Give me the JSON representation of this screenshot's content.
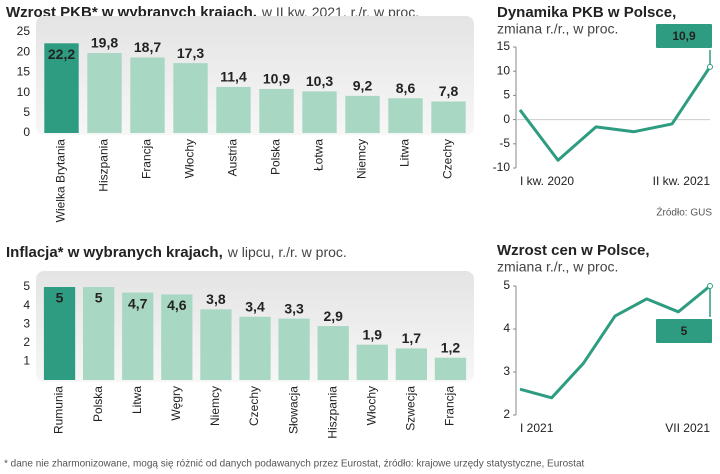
{
  "chart_data": [
    {
      "type": "bar",
      "title": "Wzrost PKB* w wybranych krajach,",
      "subtitle": "w II kw. 2021, r./r. w proc.",
      "categories": [
        "Wielka Brytania",
        "Hiszpania",
        "Francja",
        "Włochy",
        "Austria",
        "Polska",
        "Łotwa",
        "Niemcy",
        "Litwa",
        "Czechy"
      ],
      "values": [
        22.2,
        19.8,
        18.7,
        17.3,
        11.4,
        10.9,
        10.3,
        9.2,
        8.6,
        7.8
      ],
      "value_labels": [
        "22,2",
        "19,8",
        "18,7",
        "17,3",
        "11,4",
        "10,9",
        "10,3",
        "9,2",
        "8,6",
        "7,8"
      ],
      "colors": [
        "#2e9c80",
        "#a8d8c3",
        "#a8d8c3",
        "#a8d8c3",
        "#a8d8c3",
        "#a8d8c3",
        "#a8d8c3",
        "#a8d8c3",
        "#a8d8c3",
        "#a8d8c3"
      ],
      "ylim": [
        0,
        25
      ],
      "yticks": [
        0,
        5,
        10,
        15,
        20,
        25
      ]
    },
    {
      "type": "line",
      "title": "Dynamika PKB w Polsce,",
      "subtitle": "zmiana r./r., w proc.",
      "categories": [
        "I kw. 2020",
        null,
        null,
        null,
        null,
        "II kw. 2021"
      ],
      "values": [
        2,
        -8.4,
        -1.5,
        -2.5,
        -0.9,
        10.9
      ],
      "value_labels": [
        null,
        null,
        null,
        null,
        null,
        "10,9"
      ],
      "color": "#2e9c80",
      "callout": "above",
      "source": "Źródło: GUS",
      "ylim": [
        -10,
        15
      ],
      "yticks": [
        -10,
        -5,
        0,
        5,
        10,
        15
      ]
    },
    {
      "type": "bar",
      "title": "Inflacja* w wybranych krajach,",
      "subtitle": "w lipcu, r./r. w proc.",
      "categories": [
        "Rumunia",
        "Polska",
        "Litwa",
        "Węgry",
        "Niemcy",
        "Czechy",
        "Słowacja",
        "Hiszpania",
        "Włochy",
        "Szwecja",
        "Francja"
      ],
      "values": [
        5,
        5,
        4.7,
        4.6,
        3.8,
        3.4,
        3.3,
        2.9,
        1.9,
        1.7,
        1.2
      ],
      "value_labels": [
        "5",
        "5",
        "4,7",
        "4,6",
        "3,8",
        "3,4",
        "3,3",
        "2,9",
        "1,9",
        "1,7",
        "1,2"
      ],
      "colors": [
        "#2e9c80",
        "#a8d8c3",
        "#a8d8c3",
        "#a8d8c3",
        "#a8d8c3",
        "#a8d8c3",
        "#a8d8c3",
        "#a8d8c3",
        "#a8d8c3",
        "#a8d8c3",
        "#a8d8c3"
      ],
      "ylim": [
        0,
        5
      ],
      "yticks": [
        1,
        2,
        3,
        4,
        5
      ]
    },
    {
      "type": "line",
      "title": "Wzrost cen w Polsce,",
      "subtitle": "zmiana r./r., w proc.",
      "categories": [
        "I 2021",
        null,
        null,
        null,
        null,
        null,
        "VII 2021"
      ],
      "values": [
        2.6,
        2.4,
        3.2,
        4.3,
        4.7,
        4.4,
        5
      ],
      "value_labels": [
        null,
        null,
        null,
        null,
        null,
        null,
        "5"
      ],
      "color": "#2e9c80",
      "callout": "below",
      "ylim": [
        2,
        5
      ],
      "yticks": [
        2,
        3,
        4,
        5
      ]
    }
  ],
  "footnote": "* dane nie zharmonizowane, mogą się różnić od danych podawanych przez Eurostat, źródło: krajowe urzędy statystyczne, Eurostat"
}
